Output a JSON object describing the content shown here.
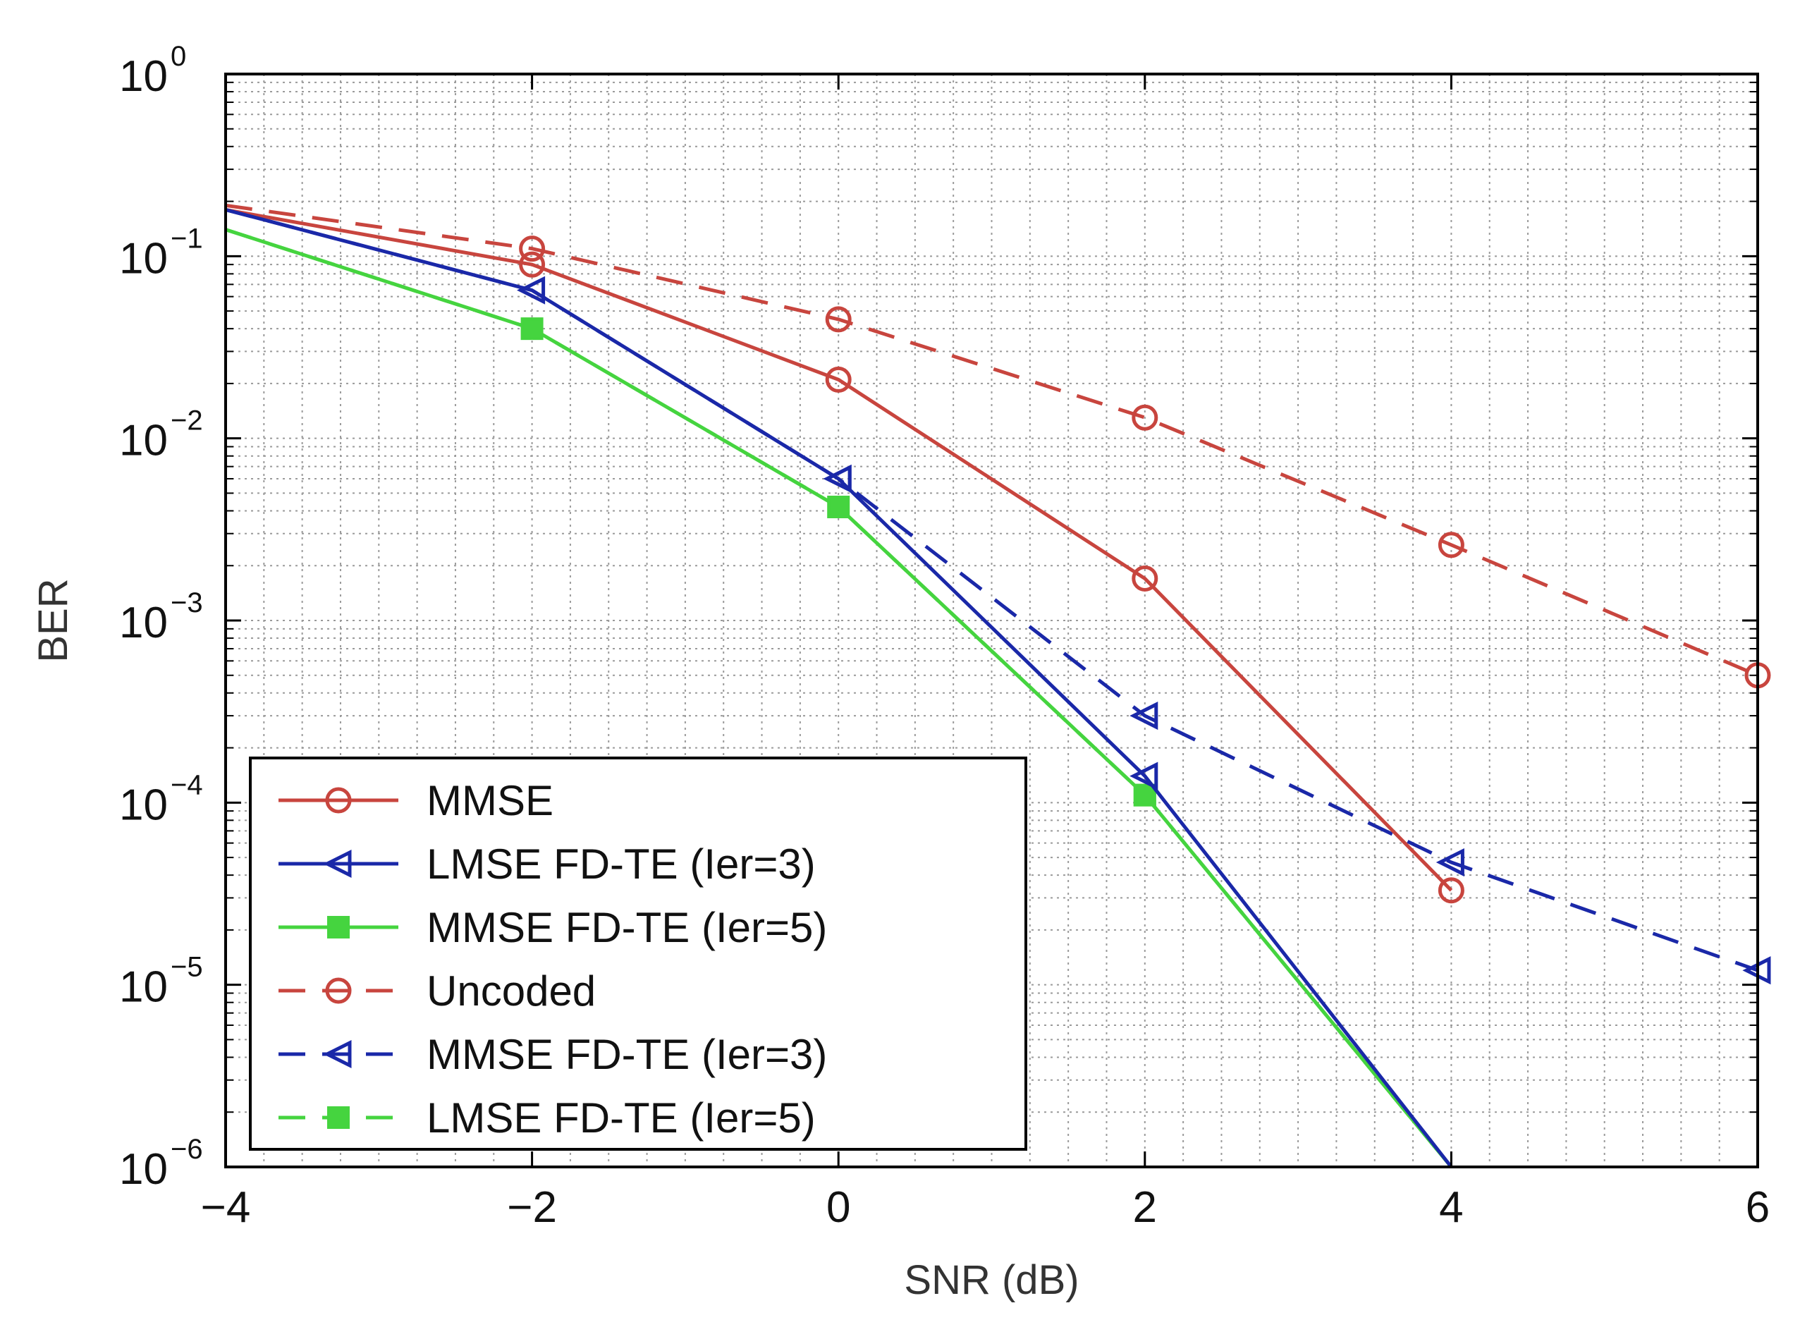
{
  "chart_data": {
    "type": "line",
    "xlabel": "SNR (dB)",
    "ylabel": "BER",
    "xlim": [
      -4,
      6
    ],
    "ylim": [
      1e-06,
      1
    ],
    "yscale": "log",
    "grid": true,
    "legend_position": "bottom-left",
    "x_ticks": [
      -4,
      -2,
      0,
      2,
      4,
      6
    ],
    "x_tick_labels": [
      "−4",
      "−2",
      "0",
      "2",
      "4",
      "6"
    ],
    "y_ticks": [
      {
        "value": 1,
        "base": "10",
        "exp": "0"
      },
      {
        "value": 0.1,
        "base": "10",
        "exp": "−1"
      },
      {
        "value": 0.01,
        "base": "10",
        "exp": "−2"
      },
      {
        "value": 0.001,
        "base": "10",
        "exp": "−3"
      },
      {
        "value": 0.0001,
        "base": "10",
        "exp": "−4"
      },
      {
        "value": 1e-05,
        "base": "10",
        "exp": "−5"
      },
      {
        "value": 1e-06,
        "base": "10",
        "exp": "−6"
      }
    ],
    "series": [
      {
        "name": "MMSE",
        "color": "#c8453e",
        "dash": "solid",
        "marker": "circle",
        "points": [
          [
            -4,
            0.18
          ],
          [
            -2,
            0.09
          ],
          [
            0,
            0.021
          ],
          [
            2,
            0.0017
          ],
          [
            4,
            3.3e-05
          ]
        ],
        "markers_at": [
          -2,
          0,
          2,
          4
        ]
      },
      {
        "name": "LMSE FD-TE (Ier=3)",
        "color": "#1a28a8",
        "dash": "solid",
        "marker": "triangle-left",
        "points": [
          [
            -4,
            0.18
          ],
          [
            -2,
            0.065
          ],
          [
            0,
            0.006
          ],
          [
            2,
            0.00014
          ],
          [
            4,
            1e-06
          ]
        ],
        "markers_at": [
          -2,
          0,
          2
        ]
      },
      {
        "name": "MMSE FD-TE (Ier=5)",
        "color": "#45d43f",
        "dash": "solid",
        "marker": "square",
        "points": [
          [
            -4,
            0.14
          ],
          [
            -2,
            0.04
          ],
          [
            0,
            0.0042
          ],
          [
            2,
            0.00011
          ],
          [
            4,
            1e-06
          ]
        ],
        "markers_at": [
          -2,
          0,
          2
        ]
      },
      {
        "name": "Uncoded",
        "color": "#c8453e",
        "dash": "dashed",
        "marker": "circle",
        "points": [
          [
            -4,
            0.19
          ],
          [
            -2,
            0.11
          ],
          [
            0,
            0.045
          ],
          [
            2,
            0.013
          ],
          [
            4,
            0.0026
          ],
          [
            6,
            0.0005
          ]
        ],
        "markers_at": [
          -2,
          0,
          2,
          4,
          6
        ]
      },
      {
        "name": "MMSE FD-TE (Ier=3)",
        "color": "#1a28a8",
        "dash": "dashed",
        "marker": "triangle-left",
        "points": [
          [
            -4,
            0.18
          ],
          [
            -2,
            0.065
          ],
          [
            0,
            0.006
          ],
          [
            2,
            0.0003
          ],
          [
            4,
            4.7e-05
          ],
          [
            6,
            1.2e-05
          ]
        ],
        "markers_at": [
          0,
          2,
          4,
          6
        ]
      },
      {
        "name": "LMSE FD-TE (Ier=5)",
        "color": "#45d43f",
        "dash": "dashed",
        "marker": "square",
        "points": [
          [
            -4,
            0.14
          ],
          [
            -2,
            0.04
          ],
          [
            0,
            0.0042
          ],
          [
            2,
            0.00011
          ],
          [
            4,
            1e-06
          ]
        ],
        "markers_at": [
          2
        ]
      }
    ],
    "legend": [
      "MMSE",
      "LMSE FD-TE (Ier=3)",
      "MMSE FD-TE (Ier=5)",
      "Uncoded",
      "MMSE FD-TE (Ier=3)",
      "LMSE FD-TE (Ier=5)"
    ]
  }
}
